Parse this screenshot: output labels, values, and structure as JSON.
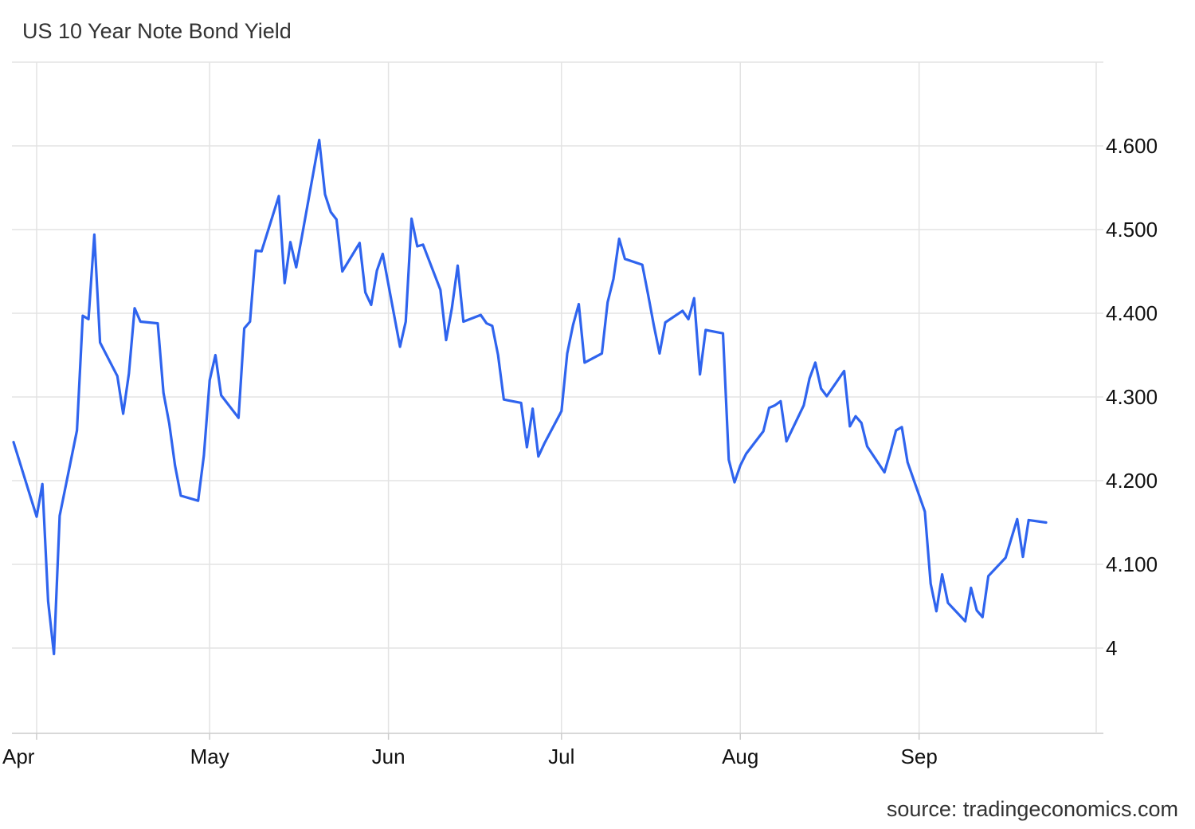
{
  "header": {
    "title": "US 10 Year Note Bond Yield"
  },
  "footer": {
    "source": "source: tradingeconomics.com"
  },
  "colors": {
    "line": "#2f64ee",
    "grid": "#e3e3e3",
    "axis": "#cccccc",
    "text": "#111111"
  },
  "chart_data": {
    "type": "line",
    "title": "US 10 Year Note Bond Yield",
    "xlabel": "",
    "ylabel": "",
    "x_tick_labels": [
      "Apr",
      "May",
      "Jun",
      "Jul",
      "Aug",
      "Sep"
    ],
    "y_tick_values": [
      4,
      4.1,
      4.2,
      4.3,
      4.4,
      4.5,
      4.6
    ],
    "y_tick_labels": [
      "4",
      "4.100",
      "4.200",
      "4.300",
      "4.400",
      "4.500",
      "4.600"
    ],
    "ylim": [
      3.9,
      4.7
    ],
    "xlim": [
      "2024-03-29",
      "2024-10-01"
    ],
    "grid": true,
    "y_axis_side": "right",
    "series": [
      {
        "values": [
          [
            "2024-03-28",
            4.246
          ],
          [
            "2024-04-01",
            4.157
          ],
          [
            "2024-04-02",
            4.196
          ],
          [
            "2024-04-03",
            4.056
          ],
          [
            "2024-04-04",
            3.993
          ],
          [
            "2024-04-05",
            4.158
          ],
          [
            "2024-04-08",
            4.26
          ],
          [
            "2024-04-09",
            4.397
          ],
          [
            "2024-04-10",
            4.393
          ],
          [
            "2024-04-11",
            4.494
          ],
          [
            "2024-04-12",
            4.365
          ],
          [
            "2024-04-15",
            4.325
          ],
          [
            "2024-04-16",
            4.28
          ],
          [
            "2024-04-17",
            4.328
          ],
          [
            "2024-04-18",
            4.406
          ],
          [
            "2024-04-19",
            4.39
          ],
          [
            "2024-04-22",
            4.388
          ],
          [
            "2024-04-23",
            4.305
          ],
          [
            "2024-04-24",
            4.268
          ],
          [
            "2024-04-25",
            4.218
          ],
          [
            "2024-04-26",
            4.182
          ],
          [
            "2024-04-29",
            4.176
          ],
          [
            "2024-04-30",
            4.23
          ],
          [
            "2024-05-01",
            4.32
          ],
          [
            "2024-05-02",
            4.35
          ],
          [
            "2024-05-03",
            4.302
          ],
          [
            "2024-05-06",
            4.275
          ],
          [
            "2024-05-07",
            4.382
          ],
          [
            "2024-05-08",
            4.39
          ],
          [
            "2024-05-09",
            4.475
          ],
          [
            "2024-05-10",
            4.474
          ],
          [
            "2024-05-13",
            4.54
          ],
          [
            "2024-05-14",
            4.436
          ],
          [
            "2024-05-15",
            4.485
          ],
          [
            "2024-05-16",
            4.455
          ],
          [
            "2024-05-17",
            4.492
          ],
          [
            "2024-05-20",
            4.607
          ],
          [
            "2024-05-21",
            4.542
          ],
          [
            "2024-05-22",
            4.521
          ],
          [
            "2024-05-23",
            4.512
          ],
          [
            "2024-05-24",
            4.45
          ],
          [
            "2024-05-27",
            4.484
          ],
          [
            "2024-05-28",
            4.425
          ],
          [
            "2024-05-29",
            4.41
          ],
          [
            "2024-05-30",
            4.451
          ],
          [
            "2024-05-31",
            4.471
          ],
          [
            "2024-06-03",
            4.36
          ],
          [
            "2024-06-04",
            4.39
          ],
          [
            "2024-06-05",
            4.513
          ],
          [
            "2024-06-06",
            4.48
          ],
          [
            "2024-06-07",
            4.482
          ],
          [
            "2024-06-10",
            4.428
          ],
          [
            "2024-06-11",
            4.368
          ],
          [
            "2024-06-12",
            4.406
          ],
          [
            "2024-06-13",
            4.457
          ],
          [
            "2024-06-14",
            4.39
          ],
          [
            "2024-06-17",
            4.398
          ],
          [
            "2024-06-18",
            4.388
          ],
          [
            "2024-06-19",
            4.385
          ],
          [
            "2024-06-20",
            4.35
          ],
          [
            "2024-06-21",
            4.297
          ],
          [
            "2024-06-24",
            4.293
          ],
          [
            "2024-06-25",
            4.24
          ],
          [
            "2024-06-26",
            4.286
          ],
          [
            "2024-06-27",
            4.229
          ],
          [
            "2024-06-28",
            4.244
          ],
          [
            "2024-07-01",
            4.283
          ],
          [
            "2024-07-02",
            4.352
          ],
          [
            "2024-07-03",
            4.386
          ],
          [
            "2024-07-04",
            4.411
          ],
          [
            "2024-07-05",
            4.341
          ],
          [
            "2024-07-08",
            4.352
          ],
          [
            "2024-07-09",
            4.413
          ],
          [
            "2024-07-10",
            4.441
          ],
          [
            "2024-07-11",
            4.489
          ],
          [
            "2024-07-12",
            4.465
          ],
          [
            "2024-07-15",
            4.458
          ],
          [
            "2024-07-16",
            4.423
          ],
          [
            "2024-07-17",
            4.386
          ],
          [
            "2024-07-18",
            4.352
          ],
          [
            "2024-07-19",
            4.389
          ],
          [
            "2024-07-22",
            4.403
          ],
          [
            "2024-07-23",
            4.393
          ],
          [
            "2024-07-24",
            4.418
          ],
          [
            "2024-07-25",
            4.327
          ],
          [
            "2024-07-26",
            4.38
          ],
          [
            "2024-07-29",
            4.376
          ],
          [
            "2024-07-30",
            4.225
          ],
          [
            "2024-07-31",
            4.198
          ],
          [
            "2024-08-01",
            4.218
          ],
          [
            "2024-08-02",
            4.232
          ],
          [
            "2024-08-05",
            4.259
          ],
          [
            "2024-08-06",
            4.287
          ],
          [
            "2024-08-07",
            4.29
          ],
          [
            "2024-08-08",
            4.295
          ],
          [
            "2024-08-09",
            4.247
          ],
          [
            "2024-08-12",
            4.29
          ],
          [
            "2024-08-13",
            4.322
          ],
          [
            "2024-08-14",
            4.341
          ],
          [
            "2024-08-15",
            4.31
          ],
          [
            "2024-08-16",
            4.301
          ],
          [
            "2024-08-19",
            4.331
          ],
          [
            "2024-08-20",
            4.265
          ],
          [
            "2024-08-21",
            4.277
          ],
          [
            "2024-08-22",
            4.269
          ],
          [
            "2024-08-23",
            4.241
          ],
          [
            "2024-08-26",
            4.21
          ],
          [
            "2024-08-27",
            4.234
          ],
          [
            "2024-08-28",
            4.26
          ],
          [
            "2024-08-29",
            4.264
          ],
          [
            "2024-08-30",
            4.222
          ],
          [
            "2024-09-02",
            4.163
          ],
          [
            "2024-09-03",
            4.077
          ],
          [
            "2024-09-04",
            4.044
          ],
          [
            "2024-09-05",
            4.088
          ],
          [
            "2024-09-06",
            4.054
          ],
          [
            "2024-09-09",
            4.032
          ],
          [
            "2024-09-10",
            4.072
          ],
          [
            "2024-09-11",
            4.045
          ],
          [
            "2024-09-12",
            4.037
          ],
          [
            "2024-09-13",
            4.086
          ],
          [
            "2024-09-16",
            4.108
          ],
          [
            "2024-09-17",
            4.131
          ],
          [
            "2024-09-18",
            4.154
          ],
          [
            "2024-09-19",
            4.109
          ],
          [
            "2024-09-20",
            4.153
          ],
          [
            "2024-09-23",
            4.15
          ]
        ]
      }
    ]
  }
}
